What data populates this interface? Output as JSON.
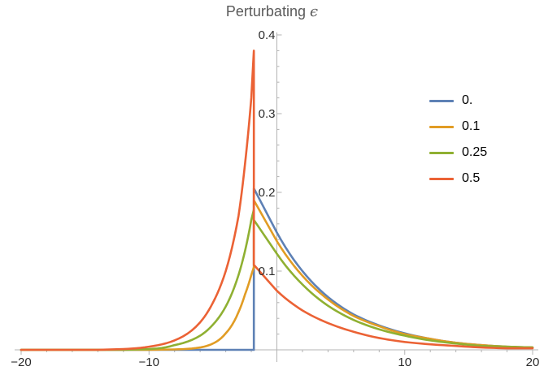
{
  "chart_data": {
    "type": "line",
    "title": "Perturbating",
    "title_symbol": "ϵ",
    "xlabel": "",
    "ylabel": "",
    "xlim": [
      -20,
      20
    ],
    "ylim": [
      0,
      0.4
    ],
    "x_ticks": [
      -20,
      -10,
      10,
      20
    ],
    "x_tick_labels": [
      "−20",
      "−10",
      "10",
      "20"
    ],
    "y_ticks": [
      0.1,
      0.2,
      0.3,
      0.4
    ],
    "y_tick_labels": [
      "0.1",
      "0.2",
      "0.3",
      "0.4"
    ],
    "grid": false,
    "legend_position": "right",
    "jump_x": -1.8,
    "series": [
      {
        "name": "0.",
        "color": "#5e81b5",
        "x": [
          -20,
          -1.8,
          -1.8,
          0,
          2,
          4,
          6,
          8,
          10,
          12,
          14,
          16,
          18,
          20
        ],
        "y": [
          0,
          0,
          0.205,
          0.149,
          0.1,
          0.067,
          0.045,
          0.031,
          0.021,
          0.014,
          0.009,
          0.006,
          0.004,
          0.003
        ]
      },
      {
        "name": "0.1",
        "color": "#e19c24",
        "x": [
          -20,
          -10,
          -8,
          -6,
          -5,
          -4,
          -3,
          -2.5,
          -2,
          -1.8,
          -1.8,
          0,
          2,
          4,
          6,
          8,
          10,
          12,
          14,
          16,
          18,
          20
        ],
        "y": [
          0,
          0,
          0.0005,
          0.003,
          0.008,
          0.021,
          0.048,
          0.07,
          0.095,
          0.105,
          0.19,
          0.138,
          0.094,
          0.064,
          0.043,
          0.03,
          0.02,
          0.014,
          0.009,
          0.006,
          0.004,
          0.003
        ]
      },
      {
        "name": "0.25",
        "color": "#8fb032",
        "x": [
          -20,
          -12,
          -10,
          -8,
          -6,
          -5,
          -4,
          -3,
          -2.5,
          -2,
          -1.8,
          -1.8,
          0,
          2,
          4,
          6,
          8,
          10,
          12,
          14,
          16,
          18,
          20
        ],
        "y": [
          0,
          0,
          0.001,
          0.006,
          0.018,
          0.032,
          0.055,
          0.095,
          0.125,
          0.165,
          0.178,
          0.165,
          0.122,
          0.083,
          0.056,
          0.038,
          0.026,
          0.018,
          0.012,
          0.008,
          0.005,
          0.004,
          0.003
        ]
      },
      {
        "name": "0.5",
        "color": "#eb6235",
        "x": [
          -20,
          -14,
          -12,
          -10,
          -8,
          -6,
          -5,
          -4,
          -3,
          -2.5,
          -2,
          -1.8,
          -1.8,
          0,
          2,
          4,
          6,
          8,
          10,
          12,
          14,
          16,
          18,
          20
        ],
        "y": [
          0,
          0,
          0.001,
          0.004,
          0.012,
          0.035,
          0.06,
          0.1,
          0.17,
          0.235,
          0.32,
          0.38,
          0.108,
          0.075,
          0.05,
          0.034,
          0.023,
          0.015,
          0.01,
          0.007,
          0.005,
          0.003,
          0.002,
          0.002
        ]
      }
    ]
  }
}
